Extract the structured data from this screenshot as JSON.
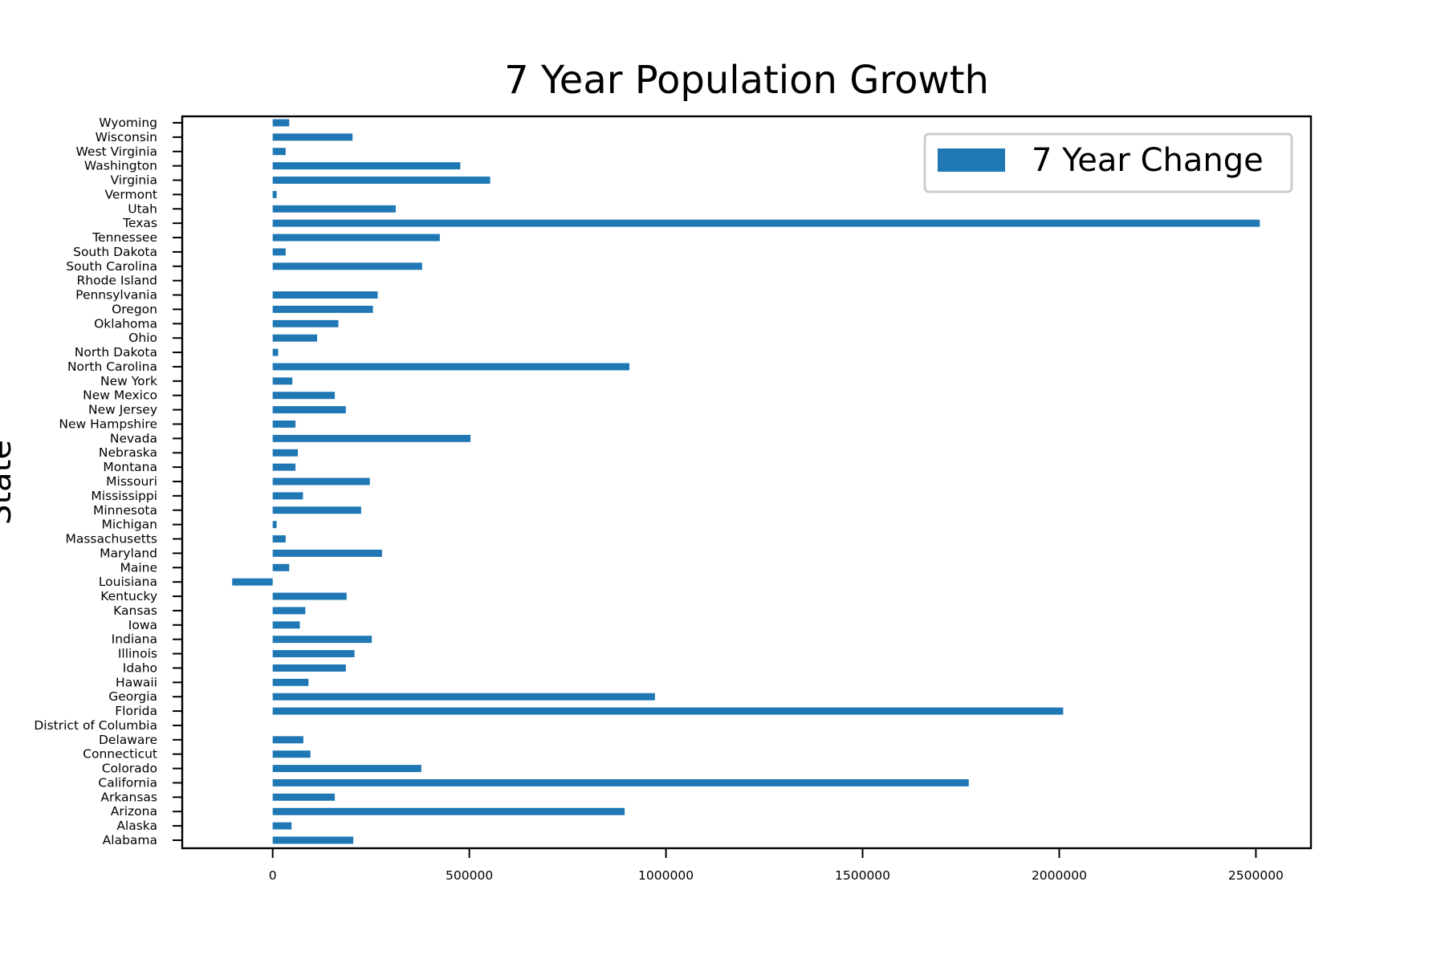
{
  "chart_data": {
    "type": "bar",
    "orientation": "horizontal",
    "title": "7 Year Population Growth",
    "ylabel": "State",
    "xlabel": "",
    "xlim": [
      -230000,
      2640000
    ],
    "xticks": [
      0,
      500000,
      1000000,
      1500000,
      2000000,
      2500000
    ],
    "xtick_labels": [
      "0",
      "500000",
      "1000000",
      "1500000",
      "2000000",
      "2500000"
    ],
    "grid": false,
    "legend": "top-right",
    "bar_color": "#1f77b4",
    "categories": [
      "Alabama",
      "Alaska",
      "Arizona",
      "Arkansas",
      "California",
      "Colorado",
      "Connecticut",
      "Delaware",
      "District of Columbia",
      "Florida",
      "Georgia",
      "Hawaii",
      "Idaho",
      "Illinois",
      "Indiana",
      "Iowa",
      "Kansas",
      "Kentucky",
      "Louisiana",
      "Maine",
      "Maryland",
      "Massachusetts",
      "Michigan",
      "Minnesota",
      "Mississippi",
      "Missouri",
      "Montana",
      "Nebraska",
      "Nevada",
      "New Hampshire",
      "New Jersey",
      "New Mexico",
      "New York",
      "North Carolina",
      "North Dakota",
      "Ohio",
      "Oklahoma",
      "Oregon",
      "Pennsylvania",
      "Rhode Island",
      "South Carolina",
      "South Dakota",
      "Tennessee",
      "Texas",
      "Utah",
      "Vermont",
      "Virginia",
      "Washington",
      "West Virginia",
      "Wisconsin",
      "Wyoming"
    ],
    "series": [
      {
        "name": "7 Year Change",
        "values": [
          205000,
          48000,
          895000,
          158000,
          1770000,
          378000,
          96000,
          78000,
          0,
          2010000,
          972000,
          91000,
          186000,
          208000,
          252000,
          69000,
          83000,
          188000,
          -103000,
          42000,
          278000,
          33000,
          10000,
          225000,
          77000,
          247000,
          58000,
          64000,
          503000,
          58000,
          186000,
          158000,
          50000,
          907000,
          14000,
          113000,
          167000,
          255000,
          267000,
          0,
          380000,
          33000,
          425000,
          2510000,
          313000,
          10000,
          553000,
          477000,
          33000,
          203000,
          42000
        ]
      }
    ]
  }
}
